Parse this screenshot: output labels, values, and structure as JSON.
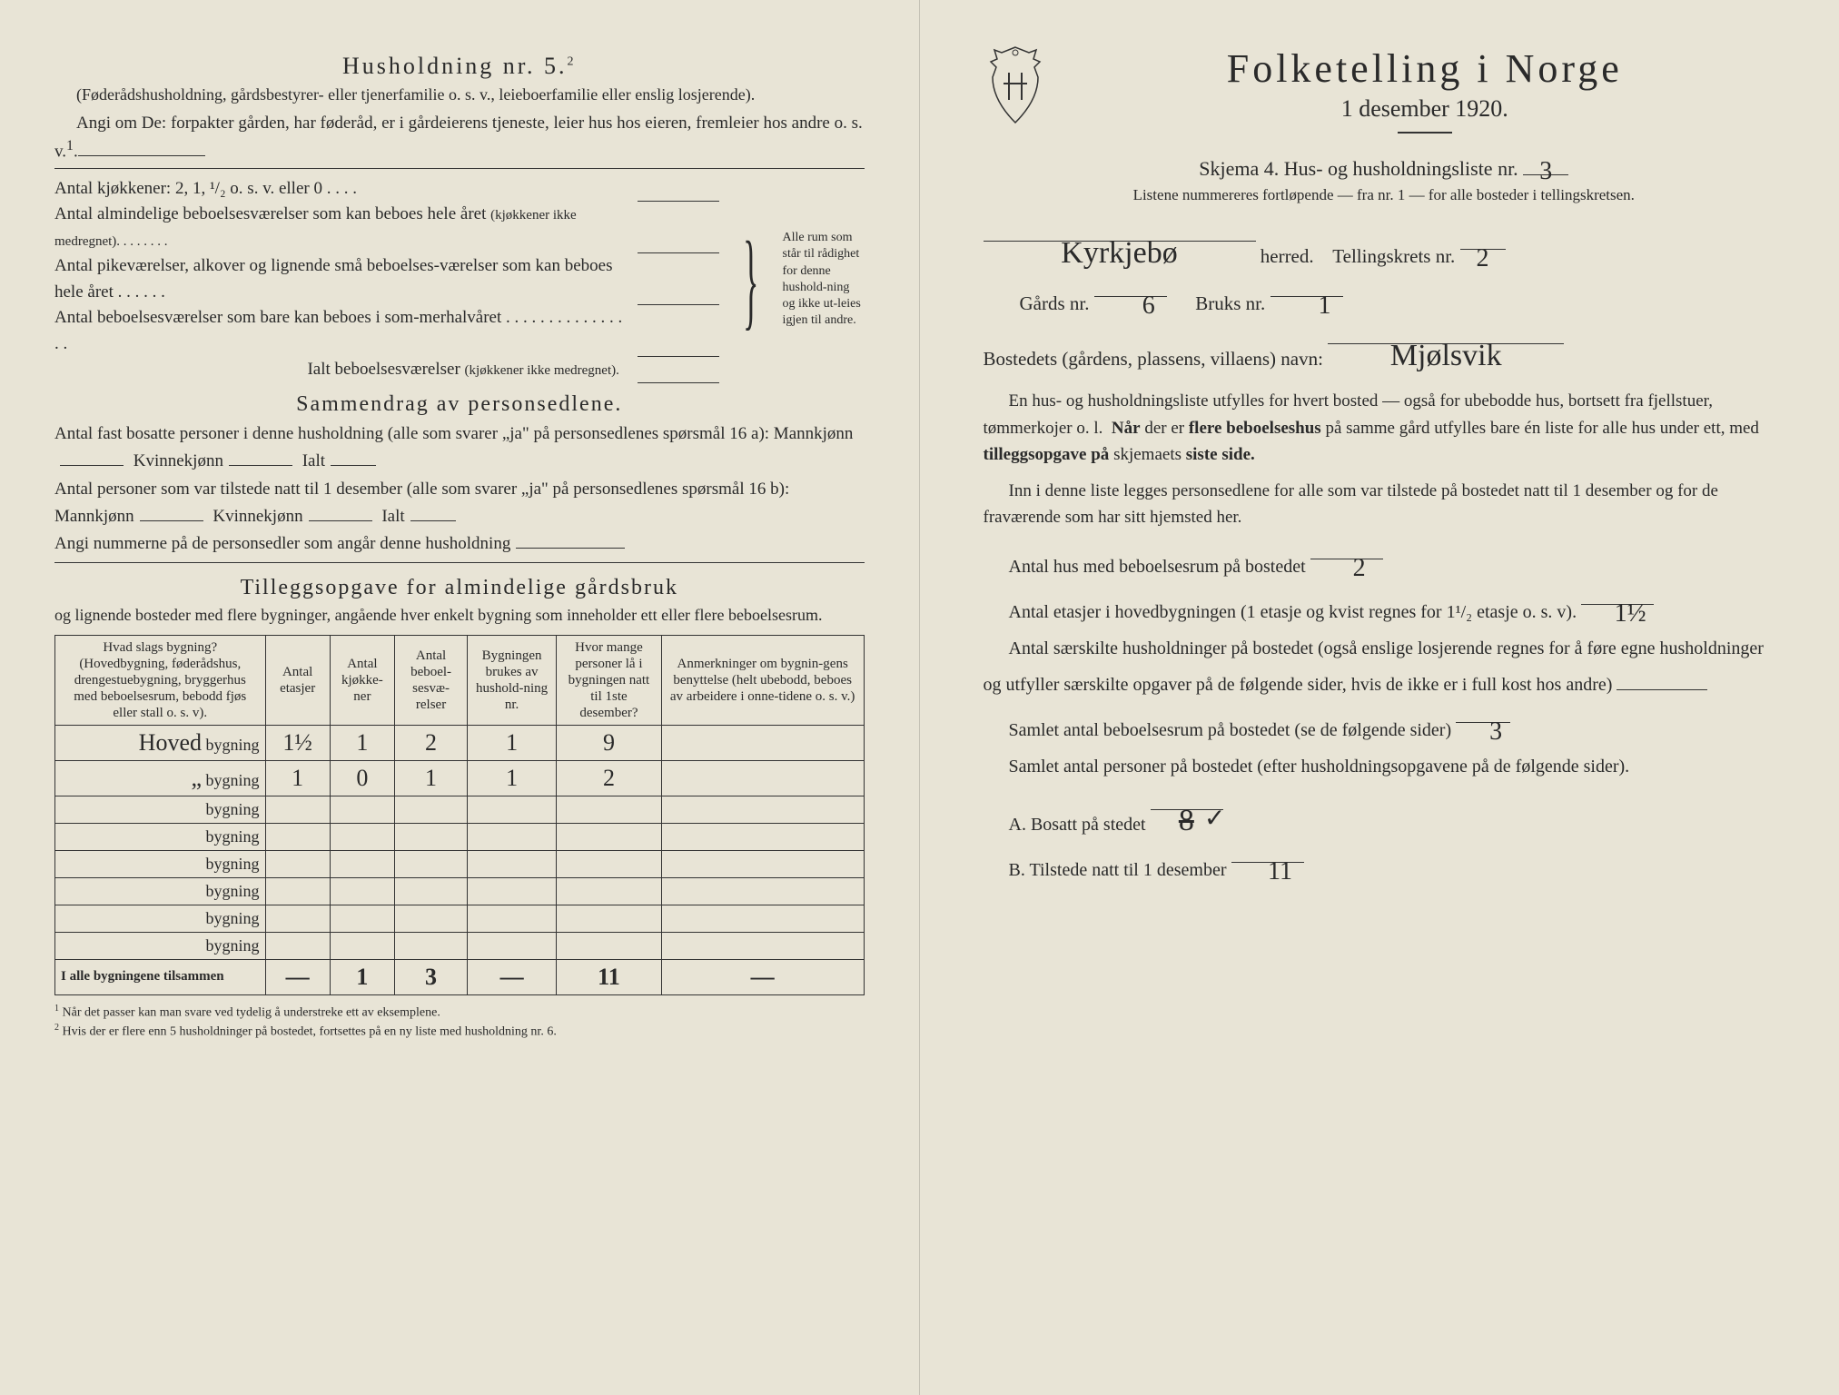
{
  "left": {
    "husholdning_title": "Husholdning nr. 5.",
    "husholdning_sup": "2",
    "husholdning_sub": "(Føderådshusholdning, gårdsbestyrer- eller tjenerfamilie o. s. v., leieboerfamilie eller enslig losjerende).",
    "angi_text": "Angi om De: forpakter gården, har føderåd, er i gårdeierens tjeneste, leier hus hos eieren, fremleier hos andre o. s. v.",
    "angi_sup": "1",
    "rooms": {
      "kjokkener": "Antal kjøkkener: 2, 1, ¹/₂ o. s. v. eller 0 . . . .",
      "almindelige": "Antal almindelige beboelsesværelser som kan beboes hele året",
      "almindelige_small": "(kjøkkener ikke medregnet). . . . . . . .",
      "pike": "Antal pikeværelser, alkover og lignende små beboelses-værelser som kan beboes hele året . . . . . .",
      "sommer": "Antal beboelsesværelser som bare kan beboes i som-merhalvåret . . . . . . . . . . . . . . . .",
      "ialt": "Ialt beboelsesværelser",
      "ialt_small": "(kjøkkener ikke medregnet).",
      "brace_text": "Alle rum som står til rådighet for denne hushold-ning og ikke ut-leies igjen til andre."
    },
    "sammendrag_title": "Sammendrag av personsedlene.",
    "sammendrag_l1": "Antal fast bosatte personer i denne husholdning (alle som svarer „ja\" på personsedlenes spørsmål 16 a): Mannkjønn",
    "kvinnekjonn": "Kvinnekjønn",
    "ialt_label": "Ialt",
    "sammendrag_l2": "Antal personer som var tilstede natt til 1 desember (alle som svarer „ja\" på personsedlenes spørsmål 16 b): Mannkjønn",
    "angi_num": "Angi nummerne på de personsedler som angår denne husholdning",
    "tillegg_title": "Tilleggsopgave for almindelige gårdsbruk",
    "tillegg_sub": "og lignende bosteder med flere bygninger, angående hver enkelt bygning som inneholder ett eller flere beboelsesrum.",
    "table": {
      "headers": [
        "Hvad slags bygning?\n(Hovedbygning, føderådshus, drengestuebygning, bryggerhus med beboelsesrum, bebodd fjøs eller stall o. s. v).",
        "Antal etasjer",
        "Antal kjøkke-ner",
        "Antal beboel-sesvæ-relser",
        "Bygningen brukes av hushold-ning nr.",
        "Hvor mange personer lå i bygningen natt til 1ste desember?",
        "Anmerkninger om bygnin-gens benyttelse (helt ubebodd, beboes av arbeidere i onne-tidene o. s. v.)"
      ],
      "rows": [
        {
          "label": "Hoved",
          "suffix": "bygning",
          "cells": [
            "1½",
            "1",
            "2",
            "1",
            "9",
            ""
          ]
        },
        {
          "label": "„",
          "suffix": "bygning",
          "cells": [
            "1",
            "0",
            "1",
            "1",
            "2",
            ""
          ]
        },
        {
          "label": "",
          "suffix": "bygning",
          "cells": [
            "",
            "",
            "",
            "",
            "",
            ""
          ]
        },
        {
          "label": "",
          "suffix": "bygning",
          "cells": [
            "",
            "",
            "",
            "",
            "",
            ""
          ]
        },
        {
          "label": "",
          "suffix": "bygning",
          "cells": [
            "",
            "",
            "",
            "",
            "",
            ""
          ]
        },
        {
          "label": "",
          "suffix": "bygning",
          "cells": [
            "",
            "",
            "",
            "",
            "",
            ""
          ]
        },
        {
          "label": "",
          "suffix": "bygning",
          "cells": [
            "",
            "",
            "",
            "",
            "",
            ""
          ]
        },
        {
          "label": "",
          "suffix": "bygning",
          "cells": [
            "",
            "",
            "",
            "",
            "",
            ""
          ]
        }
      ],
      "total_label": "I alle bygningene tilsammen",
      "total_cells": [
        "—",
        "1",
        "3",
        "—",
        "11",
        "—"
      ]
    },
    "footnote1": "Når det passer kan man svare ved tydelig å understreke ett av eksemplene.",
    "footnote2": "Hvis der er flere enn 5 husholdninger på bostedet, fortsettes på en ny liste med husholdning nr. 6."
  },
  "right": {
    "title": "Folketelling i Norge",
    "date": "1 desember 1920.",
    "skjema": "Skjema 4.  Hus- og husholdningsliste nr.",
    "skjema_val": "3",
    "listene": "Listene nummereres fortløpende — fra nr. 1 — for alle bosteder i tellingskretsen.",
    "herred_val": "Kyrkjebø",
    "herred_label": "herred.",
    "tellingskrets": "Tellingskrets nr.",
    "tellingskrets_val": "2",
    "gards": "Gårds nr.",
    "gards_val": "6",
    "bruks": "Bruks nr.",
    "bruks_val": "1",
    "bostedets": "Bostedets (gårdens, plassens, villaens) navn:",
    "bostedets_val": "Mjølsvik",
    "para1": "En hus- og husholdningsliste utfylles for hvert bosted — også for ubebodde hus, bortsett fra fjellstuer, tømmerkojer o. l.  Når der er flere beboelseshus på samme gård utfylles bare én liste for alle hus under ett, med tilleggsopgave på skjemaets siste side.",
    "para2": "Inn i denne liste legges personsedlene for alle som var tilstede på bostedet natt til 1 desember og for de fraværende som har sitt hjemsted her.",
    "q_hus": "Antal hus med beboelsesrum på bostedet",
    "q_hus_val": "2",
    "q_etasjer": "Antal etasjer i hovedbygningen (1 etasje og kvist regnes for 1¹/₂ etasje o. s. v).",
    "q_etasjer_val": "1½",
    "q_hush": "Antal særskilte husholdninger på bostedet (også enslige losjerende regnes for å føre egne husholdninger og utfyller særskilte opgaver på de følgende sider, hvis de ikke er i full kost hos andre)",
    "q_hush_val": "",
    "q_beboelses": "Samlet antal beboelsesrum på bostedet (se de følgende sider)",
    "q_beboelses_val": "3",
    "q_personer": "Samlet antal personer på bostedet (efter husholdningsopgavene på de følgende sider).",
    "q_a": "A.  Bosatt på stedet",
    "q_a_val": "8",
    "q_b": "B.  Tilstede natt til 1 desember",
    "q_b_val": "11"
  },
  "colors": {
    "paper": "#e8e4d6",
    "ink": "#2a2a2a",
    "line": "#333333"
  }
}
